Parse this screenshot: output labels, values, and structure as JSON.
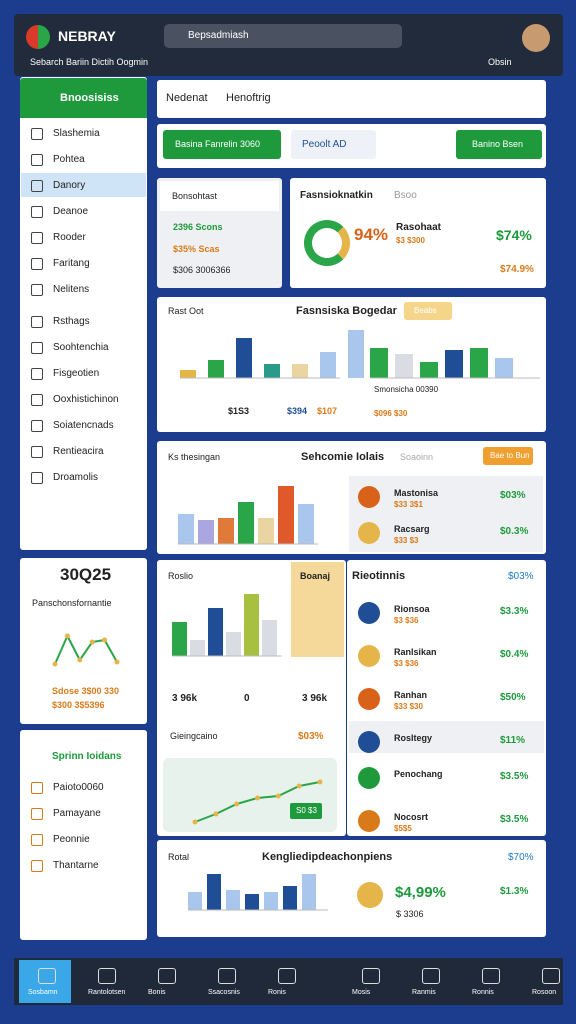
{
  "header": {
    "brand": "NEBRAY",
    "sub": "Sebarch Bariin Dictih Oogmin",
    "search": "Bepsadmiash",
    "user": "Obsin"
  },
  "sidebar": {
    "title": "Bnoosisiss",
    "items": [
      "Slashemia",
      "Pohtea",
      "Danory",
      "Deanoe",
      "Rooder",
      "Faritang",
      "Nelitens",
      "Rsthags",
      "Soohtenchia",
      "Fisgeotien",
      "Ooxhistichinon",
      "Soiatencnads",
      "Rentieacira",
      "Droamolis"
    ]
  },
  "stat_card": {
    "value": "30Q25",
    "label": "Panschonsfornantie",
    "foot1": "Sdose 3$00 330",
    "foot2": "$300 3$5396"
  },
  "side_list": {
    "title": "Sprinn Ioidans",
    "items": [
      "Paioto0060",
      "Pamayane",
      "Peonnie",
      "Thantarne"
    ]
  },
  "toolbar": {
    "title": "Nedenat",
    "tab": "Henoftrig"
  },
  "buttons": [
    "Basina Fanrelin 3060",
    "Peoolt AD",
    "Banino Bsen"
  ],
  "filter_panel": {
    "title": "Bonsohtast",
    "rows": [
      "2396 Scons",
      "$35% Scas",
      "$306 3006366"
    ]
  },
  "summary": {
    "title": "Fasnsioknatkin",
    "tag": "Bsoo",
    "percent": "94%",
    "name": "Rasohaat",
    "sub": "$3 $300",
    "value": "$74%",
    "value2": "$74.9%"
  },
  "bar_panel": {
    "label": "Rast Oot",
    "title": "Fasnsiska Bogedar",
    "badge": "Beabs",
    "foot": [
      "$1S3",
      "$394",
      "$107"
    ],
    "legend": [
      "Smonsicha 00390",
      "$096 $30"
    ]
  },
  "mid_panel": {
    "label": "Ks thesingan",
    "title": "Sehcomie Iolais",
    "search": "Soaoinn",
    "button": "Bae to Bun",
    "items": [
      {
        "name": "Mastonisa",
        "sub": "$33 3$1",
        "value": "$03%"
      },
      {
        "name": "Racsarg",
        "sub": "$33 $3",
        "value": "$0.3%"
      }
    ]
  },
  "left_panel": {
    "label": "Roslio",
    "badge": "Boanaj",
    "stats": [
      "3 96k",
      "0",
      "3 96k"
    ],
    "row": "Gieingcaino",
    "row_value": "$03%",
    "chip": "S0 $3"
  },
  "list_panel": {
    "title": "Rieotinnis",
    "value": "$03%",
    "items": [
      {
        "name": "Rionsoa",
        "sub": "$3 $36",
        "value": "$3.3%"
      },
      {
        "name": "Ranlsikan",
        "sub": "$3 $36",
        "value": "$0.4%"
      },
      {
        "name": "Ranhan",
        "sub": "$33 $30",
        "value": "$50%"
      },
      {
        "name": "Rosltegy",
        "sub": "",
        "value": "$11%"
      },
      {
        "name": "Penochang",
        "sub": "",
        "value": "$3.5%"
      },
      {
        "name": "Nocosrt",
        "sub": "$5$5",
        "value": "$3.5%"
      }
    ]
  },
  "bottom_panel": {
    "label": "Rotal",
    "title": "Kengliedipdeachonpiens",
    "value": "$70%",
    "big": "$4,99%",
    "sub": "$ 3306",
    "right": "$1.3%"
  },
  "nav": [
    "Sosbamn",
    "Rantolotsen",
    "Bonis",
    "Ssacosnis",
    "Ronis",
    "Mosis",
    "Ranmis",
    "Ronnis",
    "Rosoon"
  ],
  "charts": {
    "bars_a": {
      "values": [
        8,
        18,
        40,
        14,
        14,
        26,
        48
      ],
      "colors": [
        "#e6b54a",
        "#2aa548",
        "#1f4e96",
        "#2a9a8a",
        "#e9d4a2",
        "#a9c6ec",
        "#a9c6ec"
      ]
    },
    "bars_b": {
      "values": [
        30,
        24,
        16,
        28,
        30,
        20
      ],
      "colors": [
        "#2aa548",
        "#d9dde3",
        "#2aa548",
        "#1f4e96",
        "#2aa548",
        "#a9c6ec"
      ]
    },
    "bars_c": {
      "values": [
        30,
        24,
        26,
        42,
        26,
        58,
        40
      ],
      "colors": [
        "#a9c6ec",
        "#a9a6e0",
        "#e07a3a",
        "#2aa548",
        "#e9d4a2",
        "#e0592a",
        "#a9c6ec"
      ]
    },
    "bars_d": {
      "values": [
        34,
        16,
        48,
        24,
        62,
        36
      ],
      "colors": [
        "#2aa548",
        "#d9dde3",
        "#1f4e96",
        "#d9dde3",
        "#a8c040",
        "#d9dde3"
      ]
    },
    "bars_e": {
      "values": [
        18,
        36,
        20,
        16,
        18,
        24,
        36
      ],
      "colors": [
        "#a9c6ec",
        "#1f4e96",
        "#a9c6ec",
        "#1f4e96",
        "#a9c6ec",
        "#1f4e96",
        "#a9c6ec"
      ]
    },
    "line_a": {
      "values": [
        6,
        34,
        10,
        28,
        30,
        8
      ]
    },
    "line_b": {
      "values": [
        4,
        12,
        22,
        28,
        30,
        40,
        44
      ]
    }
  }
}
